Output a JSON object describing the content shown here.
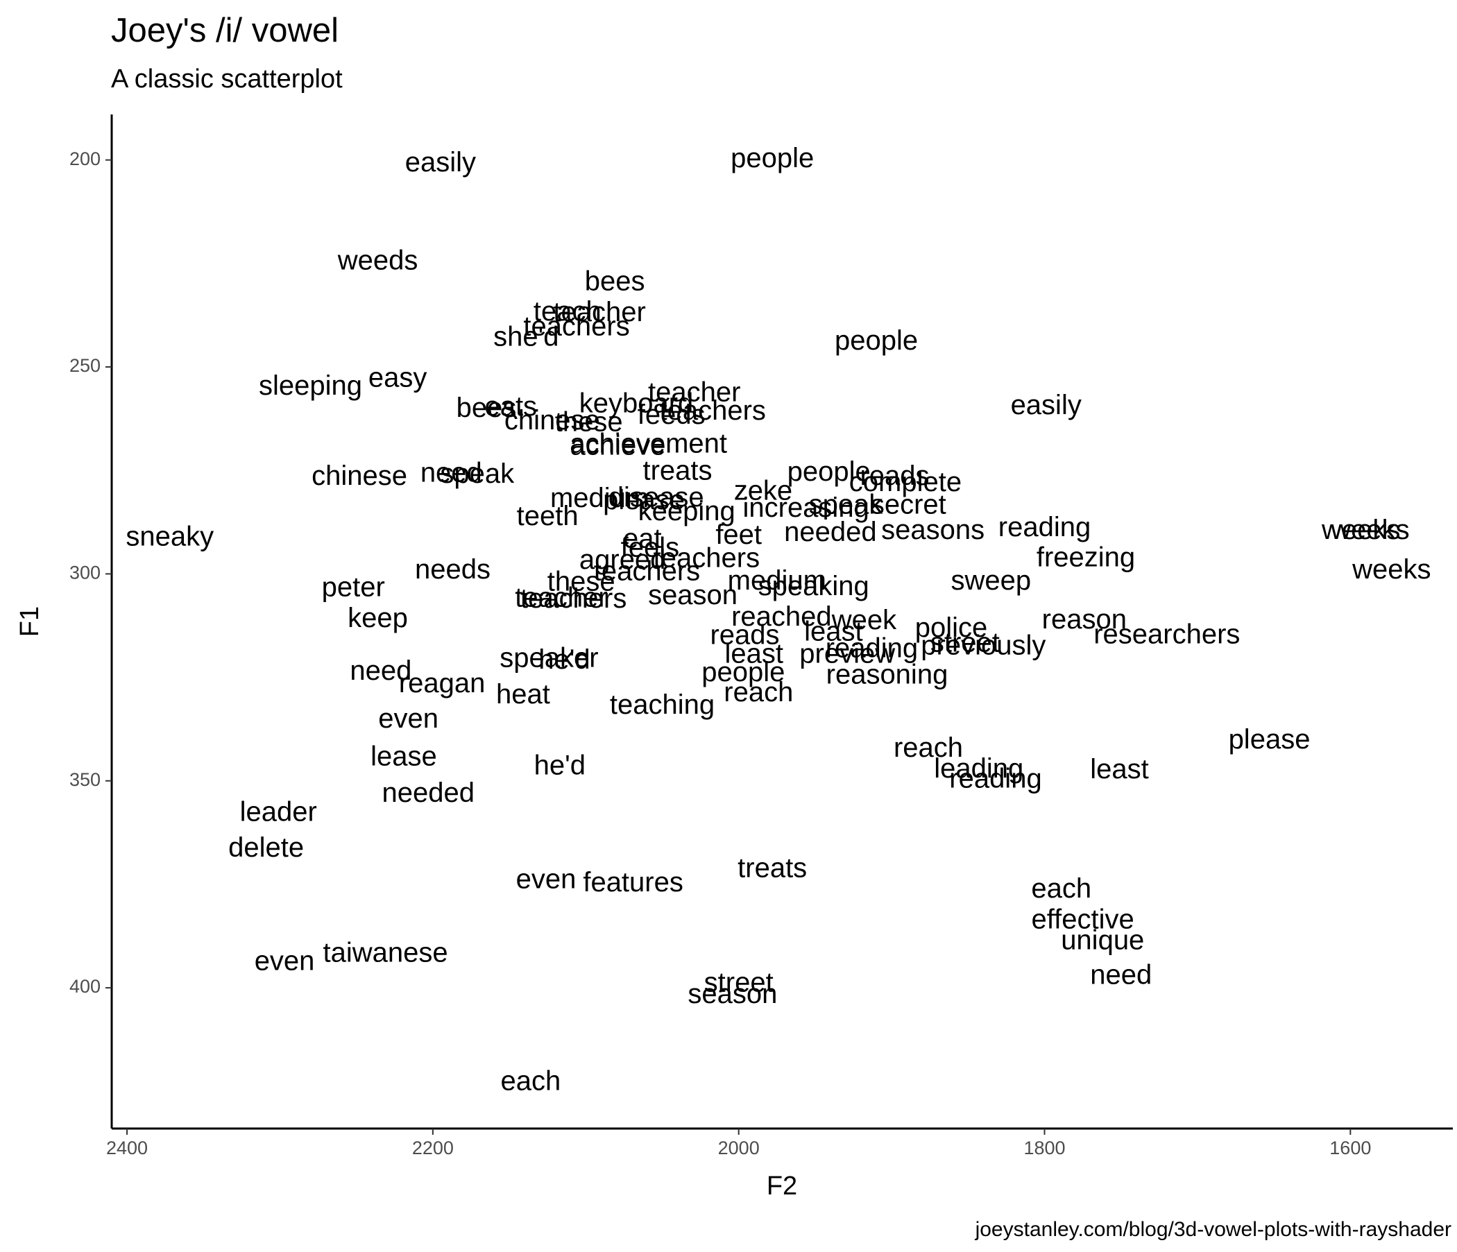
{
  "chart_data": {
    "type": "text-scatter",
    "title": "Joey's /i/ vowel",
    "subtitle": "A classic scatterplot",
    "xlabel": "F2",
    "ylabel": "F1",
    "caption": "joeystanley.com/blog/3d-vowel-plots-with-rayshader",
    "xlim": [
      2410,
      1533
    ],
    "ylim": [
      434,
      189
    ],
    "xticks": [
      2400,
      2200,
      2000,
      1800,
      1600
    ],
    "yticks": [
      200,
      250,
      300,
      350,
      400
    ],
    "color": "#000000",
    "labels": [
      "easily",
      "people",
      "weeds",
      "bees",
      "teacher",
      "teach",
      "teachers",
      "she'd",
      "people",
      "sleeping",
      "easy",
      "easily",
      "teacher",
      "bees",
      "eats",
      "keyboard",
      "teachers",
      "feeds",
      "chinese",
      "these",
      "achievement",
      "achieve",
      "chinese",
      "need",
      "speak",
      "treats",
      "people",
      "reads",
      "complete",
      "medium",
      "disease",
      "please",
      "zeke",
      "increasing",
      "speak",
      "secret",
      "keeping",
      "teeth",
      "feet",
      "needed",
      "seasons",
      "reading",
      "weeks",
      "weeks",
      "weeks",
      "sneaky",
      "freezing",
      "eat",
      "feels",
      "agreed",
      "teachers",
      "teachers",
      "needs",
      "peter",
      "sweep",
      "medium",
      "these",
      "speaking",
      "teacher",
      "teachers",
      "season",
      "reason",
      "keep",
      "week",
      "police",
      "researchers",
      "reached",
      "least",
      "previously",
      "street",
      "reading",
      "preview",
      "reads",
      "least",
      "speaker",
      "he'd",
      "people",
      "need",
      "reagan",
      "reasoning",
      "reach",
      "heat",
      "teaching",
      "even",
      "lease",
      "reach",
      "please",
      "leading",
      "reading",
      "least",
      "he'd",
      "needed",
      "leader",
      "delete",
      "treats",
      "even",
      "features",
      "each",
      "effective",
      "unique",
      "need",
      "even",
      "taiwanese",
      "street",
      "season",
      "each"
    ],
    "x": [
      2195,
      1978,
      2236,
      2081,
      2091,
      2112,
      2106,
      2139,
      1910,
      2280,
      2223,
      1799,
      2029,
      2165,
      2149,
      2067,
      2017,
      2044,
      2122,
      2098,
      2059,
      2079,
      2248,
      2188,
      2171,
      2040,
      1941,
      1898,
      1891,
      2091,
      2054,
      2062,
      1984,
      1956,
      1930,
      1889,
      2034,
      2125,
      2000,
      1940,
      1873,
      1800,
      1593,
      1587,
      1573,
      2372,
      1773,
      2063,
      2058,
      2076,
      2021,
      2060,
      2187,
      2252,
      1835,
      1975,
      2103,
      1951,
      2116,
      2108,
      2030,
      1774,
      2236,
      1918,
      1861,
      1720,
      1972,
      1938,
      1840,
      1852,
      1913,
      1929,
      1996,
      1990,
      2124,
      2114,
      1997,
      2234,
      2194,
      1903,
      1987,
      2141,
      2050,
      2216,
      2219,
      1876,
      1653,
      1843,
      1832,
      1751,
      2117,
      2203,
      2301,
      2309,
      1978,
      2126,
      2069,
      1789,
      1775,
      1762,
      1750,
      2297,
      2231,
      2000,
      2004,
      2136
    ],
    "y": [
      201,
      200,
      224.7,
      229.7,
      237.2,
      237,
      240.6,
      243.1,
      244,
      254.9,
      253,
      259.6,
      256.5,
      260.3,
      260,
      259.2,
      261,
      262,
      263.3,
      263.7,
      268.9,
      269.4,
      276.7,
      276,
      276.2,
      275.5,
      275.7,
      276.7,
      278.2,
      282.1,
      281.9,
      282.6,
      280.3,
      284.4,
      283.7,
      283.7,
      285.3,
      286.4,
      291,
      290.3,
      289.8,
      289.1,
      289.8,
      289.8,
      299.3,
      291.4,
      296.4,
      291.9,
      294.1,
      297,
      296.6,
      299.8,
      299.3,
      303.6,
      302,
      302,
      302.3,
      303.4,
      306.1,
      306.4,
      305.5,
      311.4,
      311.1,
      311.6,
      313.4,
      315,
      310.7,
      314.3,
      317.7,
      317,
      318.4,
      319.7,
      315.2,
      319.7,
      320.7,
      321.1,
      324.1,
      323.8,
      326.8,
      324.7,
      329,
      329.5,
      332,
      335.4,
      344.5,
      342.4,
      340.4,
      347.4,
      349.9,
      347.6,
      346.7,
      353.3,
      357.9,
      366.5,
      371.5,
      374.2,
      374.9,
      376.4,
      383.9,
      388.9,
      397.3,
      393.9,
      391.9,
      399.1,
      401.9,
      422.9
    ]
  }
}
